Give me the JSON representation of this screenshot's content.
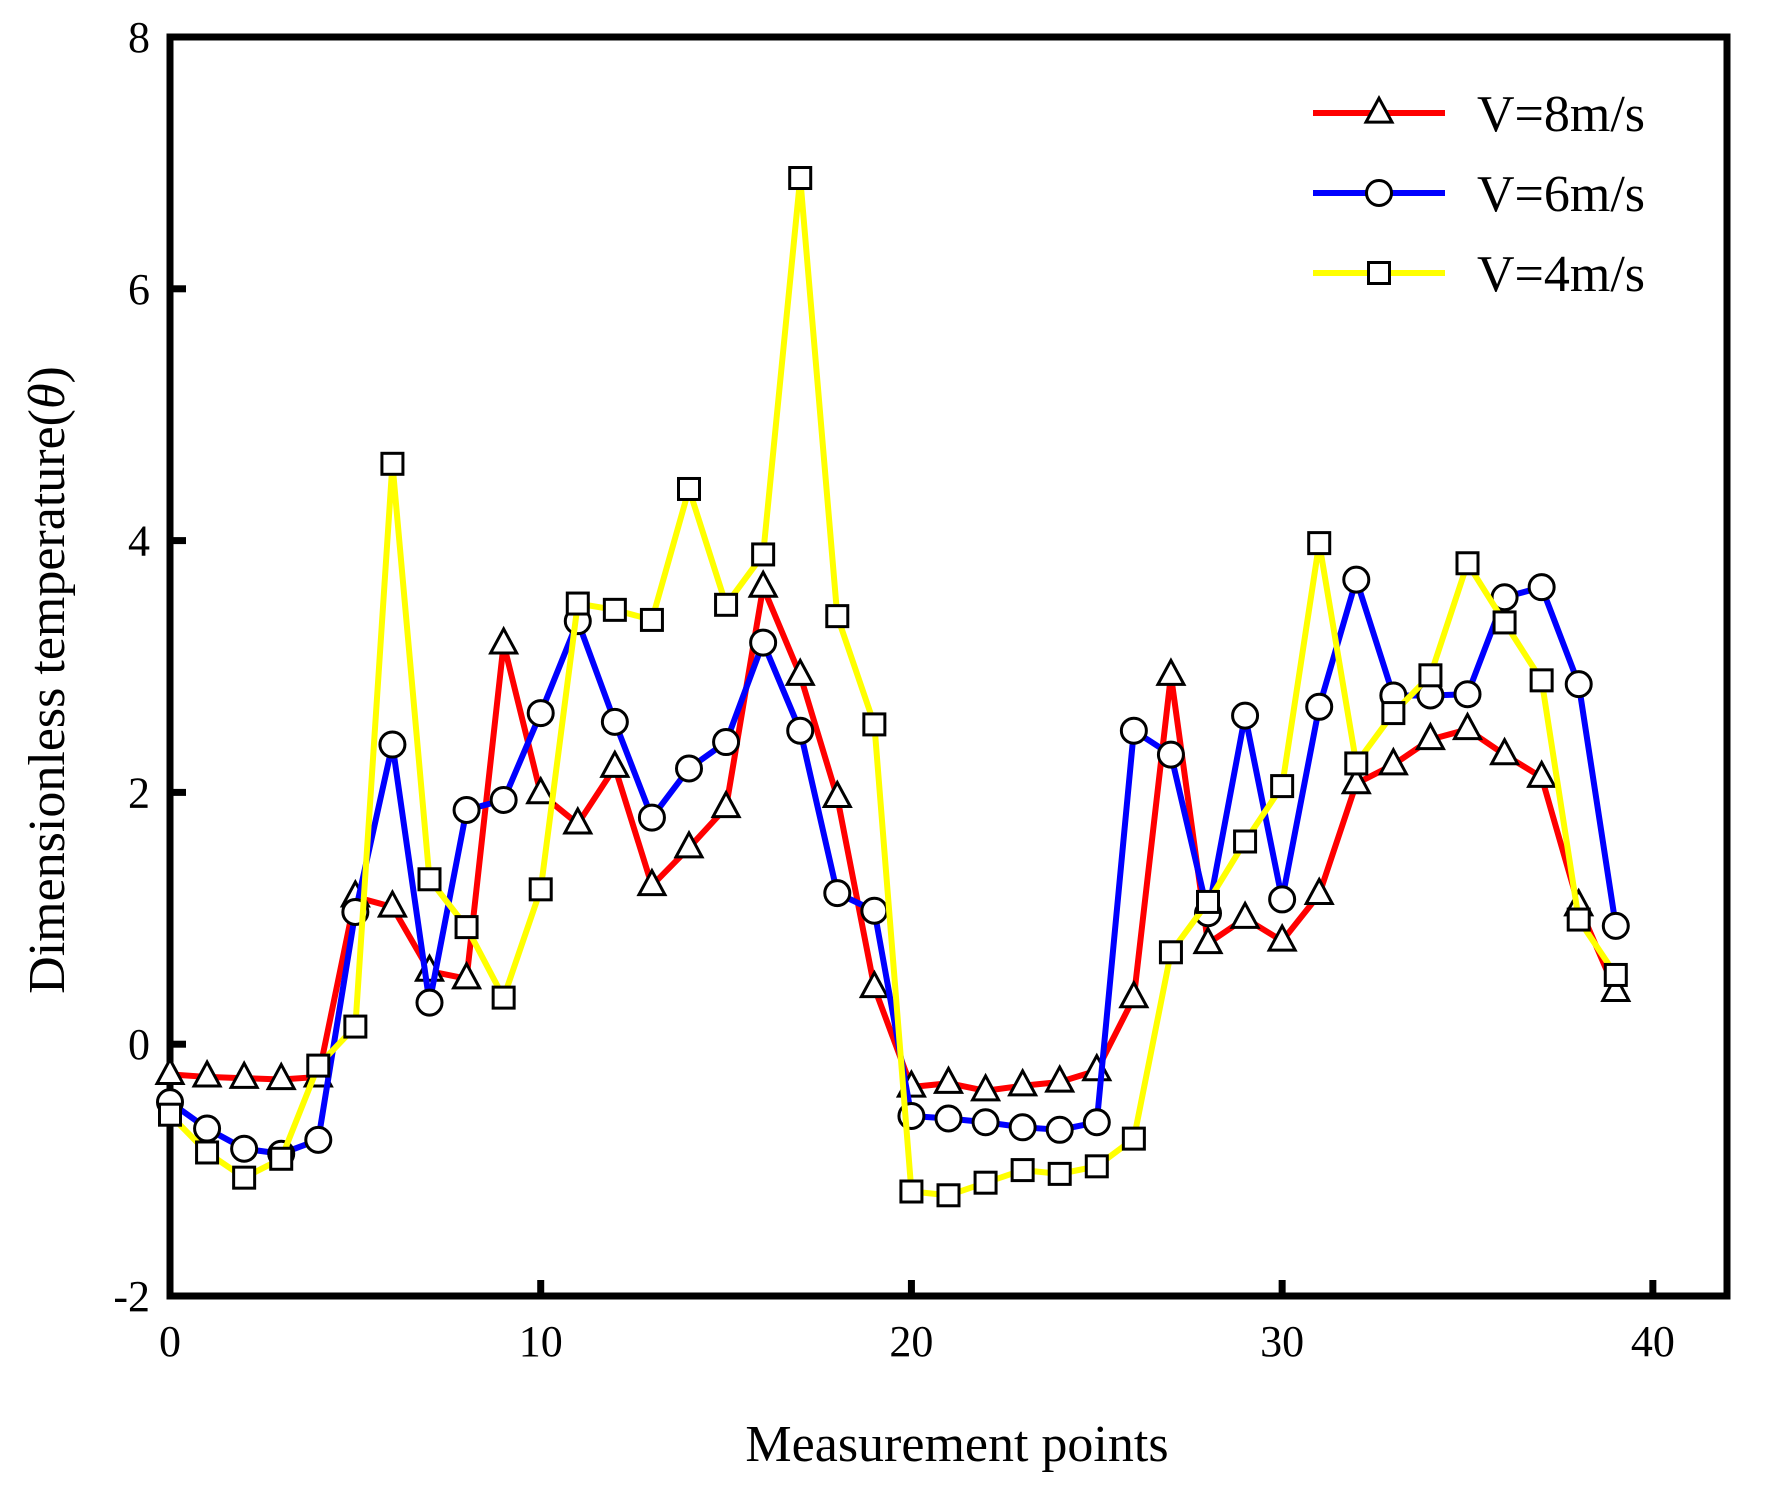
{
  "chart_data": {
    "type": "line",
    "xlabel": "Measurement points",
    "ylabel_main": "Dimensionless temperature(",
    "ylabel_symbol": "θ",
    "ylabel_close": ")",
    "xlim": [
      0,
      42
    ],
    "ylim": [
      -2,
      8
    ],
    "xticks": [
      0,
      10,
      20,
      30,
      40
    ],
    "yticks": [
      -2,
      0,
      2,
      4,
      6,
      8
    ],
    "xtick_labels": [
      "0",
      "10",
      "20",
      "30",
      "40"
    ],
    "ytick_labels": [
      "-2",
      "0",
      "2",
      "4",
      "6",
      "8"
    ],
    "grid": false,
    "legend_position": "top-right",
    "x": [
      0,
      1,
      2,
      3,
      4,
      5,
      6,
      7,
      8,
      9,
      10,
      11,
      12,
      13,
      14,
      15,
      16,
      17,
      18,
      19,
      20,
      21,
      22,
      23,
      24,
      25,
      26,
      27,
      28,
      29,
      30,
      31,
      32,
      33,
      34,
      35,
      36,
      37,
      38,
      39
    ],
    "series": [
      {
        "name": "V=8m/s",
        "color": "#ff0000",
        "marker": "triangle",
        "values": [
          -0.24,
          -0.26,
          -0.27,
          -0.28,
          -0.26,
          1.17,
          1.09,
          0.58,
          0.52,
          3.18,
          1.99,
          1.75,
          2.2,
          1.26,
          1.56,
          1.88,
          3.63,
          2.93,
          1.96,
          0.45,
          -0.34,
          -0.31,
          -0.37,
          -0.33,
          -0.3,
          -0.21,
          0.37,
          2.93,
          0.8,
          1.0,
          0.82,
          1.19,
          2.07,
          2.22,
          2.42,
          2.5,
          2.3,
          2.12,
          1.1,
          0.42
        ]
      },
      {
        "name": "V=6m/s",
        "color": "#0000ff",
        "marker": "circle",
        "values": [
          -0.46,
          -0.67,
          -0.83,
          -0.87,
          -0.76,
          1.05,
          2.38,
          0.33,
          1.86,
          1.94,
          2.63,
          3.36,
          2.56,
          1.8,
          2.19,
          2.4,
          3.19,
          2.49,
          1.2,
          1.06,
          -0.57,
          -0.59,
          -0.62,
          -0.66,
          -0.68,
          -0.62,
          2.49,
          2.3,
          1.04,
          2.61,
          1.15,
          2.68,
          3.69,
          2.77,
          2.77,
          2.78,
          3.55,
          3.63,
          2.86,
          0.94
        ]
      },
      {
        "name": "V=4m/s",
        "color": "#ffff00",
        "marker": "square",
        "values": [
          -0.56,
          -0.86,
          -1.06,
          -0.91,
          -0.17,
          0.14,
          4.61,
          1.31,
          0.93,
          0.37,
          1.23,
          3.5,
          3.45,
          3.37,
          4.41,
          3.49,
          3.89,
          6.88,
          3.4,
          2.54,
          -1.17,
          -1.2,
          -1.1,
          -1.0,
          -1.03,
          -0.97,
          -0.75,
          0.73,
          1.13,
          1.61,
          2.05,
          3.98,
          2.23,
          2.63,
          2.93,
          3.82,
          3.35,
          2.89,
          0.99,
          0.55
        ]
      }
    ]
  }
}
